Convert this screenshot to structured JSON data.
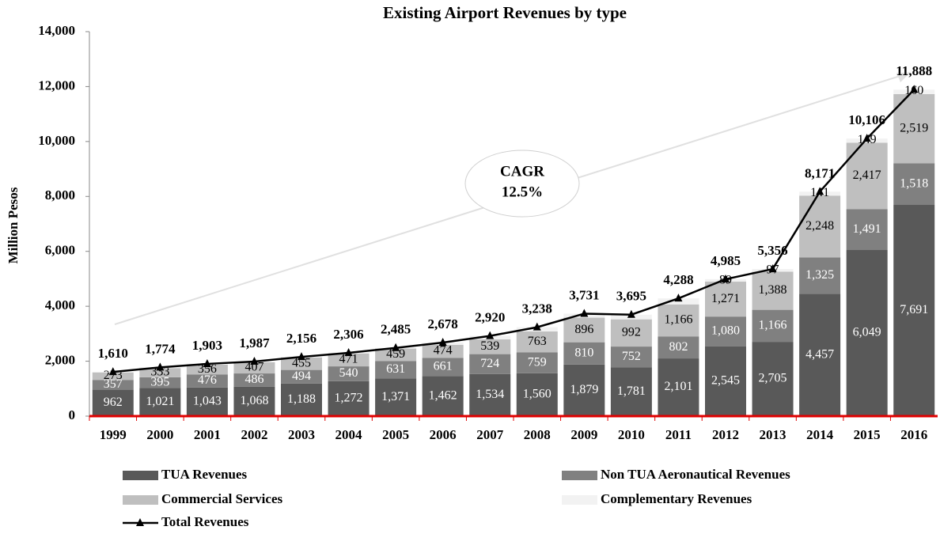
{
  "chart_data": {
    "type": "stacked_bar_line",
    "title": "Existing Airport Revenues by type",
    "y_label": "Million Pesos",
    "categories": [
      "1999",
      "2000",
      "2001",
      "2002",
      "2003",
      "2004",
      "2005",
      "2006",
      "2007",
      "2008",
      "2009",
      "2010",
      "2011",
      "2012",
      "2013",
      "2014",
      "2015",
      "2016"
    ],
    "ylim": [
      0,
      14000
    ],
    "yticks": [
      0,
      {
        "value": 2000,
        "label": "2,000"
      },
      {
        "value": 4000,
        "label": "4,000"
      },
      {
        "value": 6000,
        "label": "6,000"
      },
      {
        "value": 8000,
        "label": "8,000"
      },
      {
        "value": 10000,
        "label": "10,000"
      },
      {
        "value": 12000,
        "label": "12,000"
      },
      {
        "value": 14000,
        "label": "14,000"
      }
    ],
    "annotation": [
      "CAGR",
      "12.5%"
    ],
    "series": [
      {
        "name": "TUA Revenues",
        "color": "#595959",
        "label_color": "#ffffff",
        "values": [
          962,
          1021,
          1043,
          1068,
          1188,
          1272,
          1371,
          1462,
          1534,
          1560,
          1879,
          1781,
          2101,
          2545,
          2705,
          4457,
          6049,
          7691
        ],
        "value_labels": [
          "962",
          "1,021",
          "1,043",
          "1,068",
          "1,188",
          "1,272",
          "1,371",
          "1,462",
          "1,534",
          "1,560",
          "1,879",
          "1,781",
          "2,101",
          "2,545",
          "2,705",
          "4,457",
          "6,049",
          "7,691"
        ]
      },
      {
        "name": "Non TUA Aeronautical Revenues",
        "color": "#808080",
        "label_color": "#ffffff",
        "values": [
          357,
          395,
          476,
          486,
          494,
          540,
          631,
          661,
          724,
          759,
          810,
          752,
          802,
          1080,
          1166,
          1325,
          1491,
          1518
        ],
        "value_labels": [
          "357",
          "395",
          "476",
          "486",
          "494",
          "540",
          "631",
          "661",
          "724",
          "759",
          "810",
          "752",
          "802",
          "1,080",
          "1,166",
          "1,325",
          "1,491",
          "1,518"
        ]
      },
      {
        "name": "Commercial Services",
        "color": "#bfbfbf",
        "label_color": "#000000",
        "values": [
          273,
          333,
          356,
          407,
          455,
          471,
          459,
          474,
          539,
          763,
          896,
          992,
          1166,
          1271,
          1388,
          2248,
          2417,
          2519
        ],
        "value_labels": [
          "273",
          "333",
          "356",
          "407",
          "455",
          "471",
          "459",
          "474",
          "539",
          "763",
          "896",
          "992",
          "1,166",
          "1,271",
          "1,388",
          "2,248",
          "2,417",
          "2,519"
        ]
      },
      {
        "name": "Complementary Revenues",
        "color": "#f2f2f2",
        "label_color": "#000000",
        "values": [
          18,
          25,
          28,
          26,
          19,
          23,
          24,
          81,
          123,
          156,
          146,
          170,
          219,
          89,
          97,
          141,
          149,
          160
        ],
        "value_labels": [
          null,
          null,
          null,
          null,
          null,
          null,
          null,
          null,
          null,
          null,
          null,
          null,
          null,
          "89",
          "97",
          "141",
          "149",
          "160"
        ]
      },
      {
        "name": "Total Revenues",
        "type": "line",
        "color": "#000000",
        "values": [
          1610,
          1774,
          1903,
          1987,
          2156,
          2306,
          2485,
          2678,
          2920,
          3238,
          3731,
          3695,
          4288,
          4985,
          5356,
          8171,
          10106,
          11888
        ],
        "value_labels": [
          "1,610",
          "1,774",
          "1,903",
          "1,987",
          "2,156",
          "2,306",
          "2,485",
          "2,678",
          "2,920",
          "3,238",
          "3,731",
          "3,695",
          "4,288",
          "4,985",
          "5,356",
          "8,171",
          "10,106",
          "11,888"
        ]
      }
    ]
  }
}
